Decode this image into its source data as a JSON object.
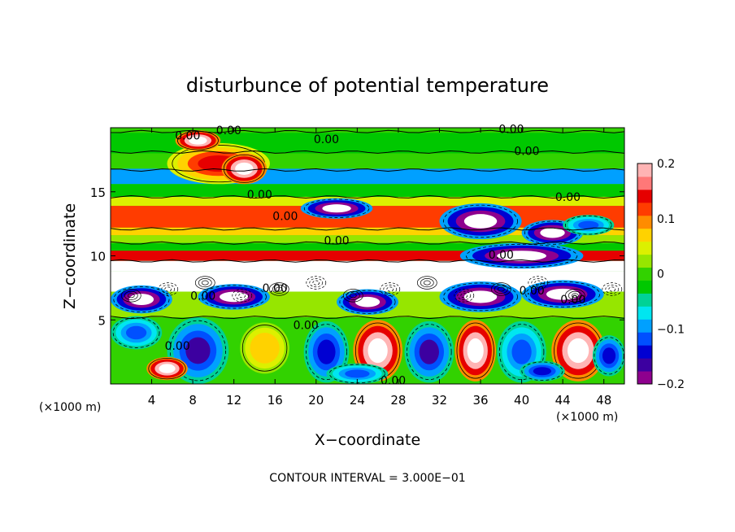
{
  "chart_data": {
    "type": "heatmap",
    "title": "disturbunce of potential temperature",
    "xlabel": "X−coordinate",
    "ylabel": "Z−coordinate",
    "x_unit_left": "(×1000 m)",
    "x_unit_right": "(×1000 m)",
    "footer": "CONTOUR INTERVAL = 3.000E−01",
    "xlim": [
      0,
      50
    ],
    "ylim": [
      0,
      20
    ],
    "x_ticks": [
      4,
      8,
      12,
      16,
      20,
      24,
      28,
      32,
      36,
      40,
      44,
      48
    ],
    "y_ticks": [
      5,
      10,
      15
    ],
    "colorbar": {
      "min": -0.2,
      "max": 0.2,
      "tick_values": [
        0.2,
        0.1,
        0,
        -0.1,
        -0.2
      ],
      "tick_labels": [
        "0.2",
        "0.1",
        "0",
        "−0.1",
        "−0.2"
      ],
      "colors": [
        "#8e008e",
        "#3c00a0",
        "#0000d2",
        "#0050ff",
        "#00a0ff",
        "#00e6f0",
        "#00d296",
        "#00c800",
        "#32d200",
        "#96e600",
        "#dcf000",
        "#ffd200",
        "#ff8c00",
        "#ff3c00",
        "#e60000",
        "#ff7878",
        "#ffb4b4"
      ]
    },
    "contour_label": "0.00",
    "contour_labels_shown": [
      "0.00",
      "0.00",
      "0.00",
      "0.00",
      "0.00",
      "0.00",
      "0.00",
      "0.00",
      "0.00",
      "0.00",
      "0.00",
      "0.00",
      "0.00",
      "0.00",
      "0.00",
      "0.00",
      "0.00"
    ],
    "field_bands": [
      {
        "z": [
          19.6,
          20.0
        ],
        "value": 0.0
      },
      {
        "z": [
          18.0,
          19.6
        ],
        "value": -0.02
      },
      {
        "z": [
          16.8,
          18.0
        ],
        "value": 0.01
      },
      {
        "z": [
          15.6,
          16.8
        ],
        "value": -0.09
      },
      {
        "z": [
          14.6,
          15.6
        ],
        "value": -0.03
      },
      {
        "z": [
          13.9,
          14.6
        ],
        "value": 0.05
      },
      {
        "z": [
          12.2,
          13.9
        ],
        "value": 0.12
      },
      {
        "z": [
          11.6,
          12.2
        ],
        "value": 0.08
      },
      {
        "z": [
          11.0,
          11.6
        ],
        "value": 0.02
      },
      {
        "z": [
          10.4,
          11.0
        ],
        "value": -0.03
      },
      {
        "z": [
          9.6,
          10.4
        ],
        "value": 0.15
      },
      {
        "z": [
          8.8,
          9.6
        ],
        "value": 0.21
      },
      {
        "z": [
          7.2,
          8.8
        ],
        "value": 0.25
      },
      {
        "z": [
          5.2,
          7.2
        ],
        "value": 0.02
      },
      {
        "z": [
          0.0,
          5.2
        ],
        "value": 0.0
      }
    ],
    "blobs": [
      {
        "x": 10.5,
        "z": 17.2,
        "rx": 5.0,
        "rz": 1.6,
        "value": 0.14
      },
      {
        "x": 13.0,
        "z": 16.8,
        "rx": 2.2,
        "rz": 1.2,
        "value": 0.25
      },
      {
        "x": 8.5,
        "z": 19.0,
        "rx": 2.2,
        "rz": 0.8,
        "value": 0.25
      },
      {
        "x": 22.0,
        "z": 13.7,
        "rx": 3.5,
        "rz": 0.8,
        "value": -0.25
      },
      {
        "x": 36.0,
        "z": 12.7,
        "rx": 4.0,
        "rz": 1.4,
        "value": -0.25
      },
      {
        "x": 43.0,
        "z": 11.8,
        "rx": 3.0,
        "rz": 1.0,
        "value": -0.25
      },
      {
        "x": 46.5,
        "z": 12.4,
        "rx": 2.5,
        "rz": 0.8,
        "value": -0.12
      },
      {
        "x": 40.0,
        "z": 10.0,
        "rx": 6.0,
        "rz": 1.0,
        "value": -0.25
      },
      {
        "x": 3.0,
        "z": 6.6,
        "rx": 3.0,
        "rz": 1.1,
        "value": -0.25
      },
      {
        "x": 12.0,
        "z": 6.8,
        "rx": 3.5,
        "rz": 1.0,
        "value": -0.25
      },
      {
        "x": 25.0,
        "z": 6.4,
        "rx": 3.0,
        "rz": 1.0,
        "value": -0.25
      },
      {
        "x": 36.0,
        "z": 6.8,
        "rx": 4.0,
        "rz": 1.2,
        "value": -0.25
      },
      {
        "x": 44.0,
        "z": 7.0,
        "rx": 4.0,
        "rz": 1.1,
        "value": -0.25
      },
      {
        "x": 2.5,
        "z": 4.0,
        "rx": 2.5,
        "rz": 1.3,
        "value": -0.12
      },
      {
        "x": 8.5,
        "z": 2.6,
        "rx": 3.0,
        "rz": 2.6,
        "value": -0.16
      },
      {
        "x": 15.0,
        "z": 2.8,
        "rx": 2.4,
        "rz": 2.0,
        "value": 0.08
      },
      {
        "x": 21.0,
        "z": 2.5,
        "rx": 2.2,
        "rz": 2.4,
        "value": -0.15
      },
      {
        "x": 26.0,
        "z": 2.6,
        "rx": 2.4,
        "rz": 2.4,
        "value": 0.25
      },
      {
        "x": 31.0,
        "z": 2.5,
        "rx": 2.4,
        "rz": 2.4,
        "value": -0.16
      },
      {
        "x": 35.5,
        "z": 2.6,
        "rx": 2.0,
        "rz": 2.4,
        "value": 0.25
      },
      {
        "x": 40.0,
        "z": 2.5,
        "rx": 2.4,
        "rz": 2.4,
        "value": -0.12
      },
      {
        "x": 45.5,
        "z": 2.6,
        "rx": 2.6,
        "rz": 2.4,
        "value": 0.25
      },
      {
        "x": 48.5,
        "z": 2.2,
        "rx": 1.6,
        "rz": 1.6,
        "value": -0.15
      },
      {
        "x": 5.5,
        "z": 1.2,
        "rx": 2.0,
        "rz": 0.9,
        "value": 0.25
      },
      {
        "x": 24.0,
        "z": 0.8,
        "rx": 3.0,
        "rz": 0.8,
        "value": -0.12
      },
      {
        "x": 42.0,
        "z": 1.0,
        "rx": 2.2,
        "rz": 0.8,
        "value": -0.15
      }
    ]
  }
}
